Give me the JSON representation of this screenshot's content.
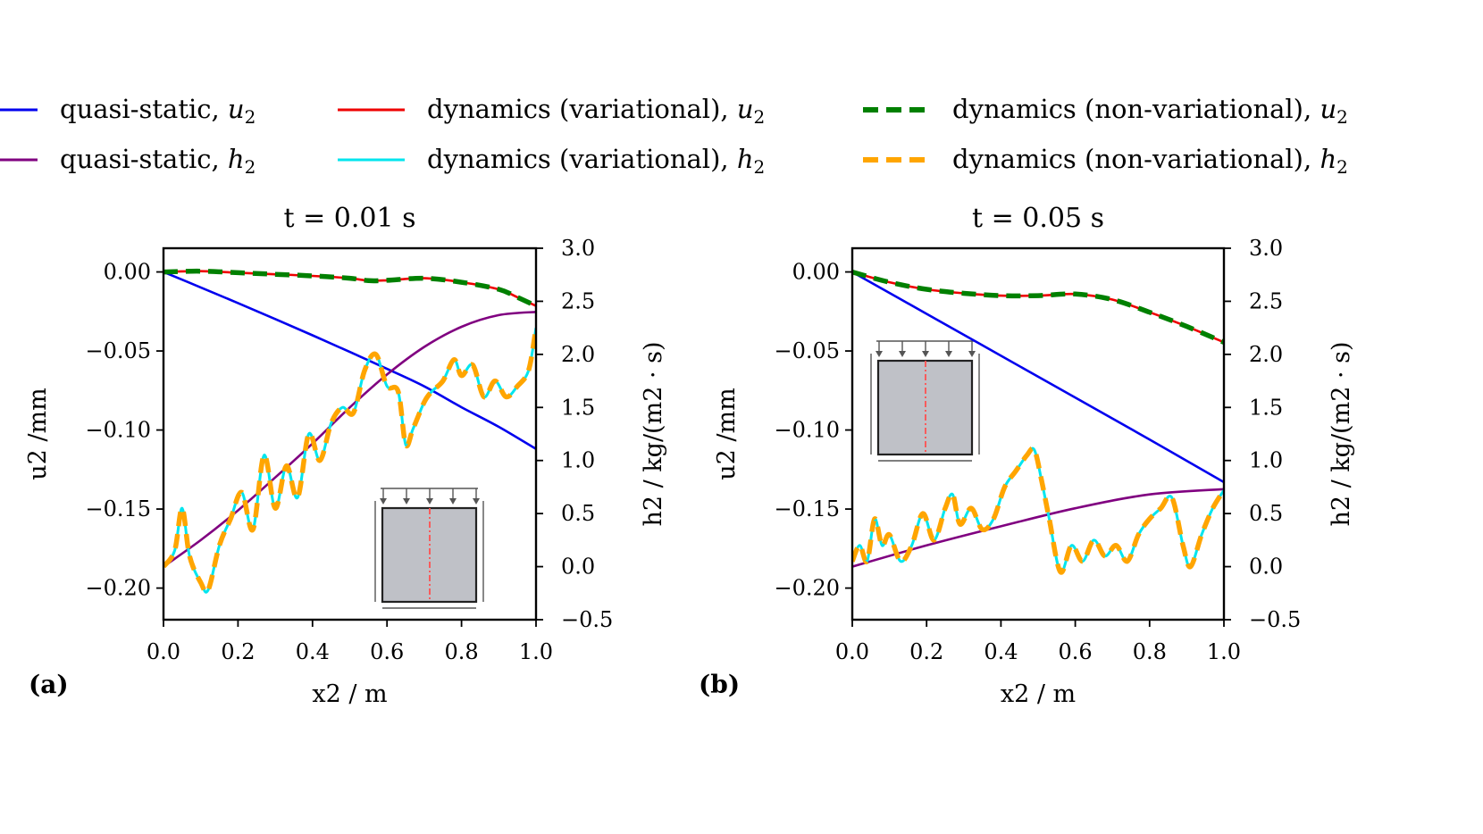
{
  "legend": [
    {
      "label": "quasi-static, ",
      "sym": "u",
      "sub": "2",
      "color": "#0000ee",
      "style": "solid",
      "key": "qs_u"
    },
    {
      "label": "quasi-static, ",
      "sym": "h",
      "sub": "2",
      "color": "#800080",
      "style": "solid",
      "key": "qs_h"
    },
    {
      "label": "dynamics (variational), ",
      "sym": "u",
      "sub": "2",
      "color": "#ee0000",
      "style": "solid",
      "key": "dv_u"
    },
    {
      "label": "dynamics (variational), ",
      "sym": "h",
      "sub": "2",
      "color": "#00e5ee",
      "style": "solid",
      "key": "dv_h"
    },
    {
      "label": "dynamics (non-variational), ",
      "sym": "u",
      "sub": "2",
      "color": "#008000",
      "style": "dashed",
      "key": "dn_u"
    },
    {
      "label": "dynamics (non-variational), ",
      "sym": "h",
      "sub": "2",
      "color": "#ffa500",
      "style": "dashed",
      "key": "dn_h"
    }
  ],
  "chart_data": [
    {
      "type": "line",
      "panel_label": "(a)",
      "title": "t = 0.01  s",
      "xlabel": "x2 / m",
      "ylabel_left": "u2 /mm",
      "ylabel_right": "h2 / kg/(m2 · s)",
      "xlim": [
        0,
        1
      ],
      "ylim_left": [
        -0.22,
        0.015
      ],
      "ylim_right": [
        -0.5,
        3.0
      ],
      "xticks": [
        "0.0",
        "0.2",
        "0.4",
        "0.6",
        "0.8",
        "1.0"
      ],
      "yticks_left": [
        "0.00",
        "−0.05",
        "−0.10",
        "−0.15",
        "−0.20"
      ],
      "yticks_right": [
        "3.0",
        "2.5",
        "2.0",
        "1.5",
        "1.0",
        "0.5",
        "0.0",
        "−0.5"
      ],
      "series": [
        {
          "key": "qs_u",
          "axis": "left",
          "x": [
            0,
            0.1,
            0.2,
            0.3,
            0.4,
            0.5,
            0.6,
            0.7,
            0.8,
            0.9,
            1.0
          ],
          "y": [
            0,
            -0.0098,
            -0.0197,
            -0.0298,
            -0.0401,
            -0.0506,
            -0.0613,
            -0.0724,
            -0.0856,
            -0.098,
            -0.112
          ]
        },
        {
          "key": "dv_u",
          "axis": "left",
          "x": [
            0,
            0.1,
            0.2,
            0.3,
            0.4,
            0.5,
            0.55,
            0.6,
            0.7,
            0.8,
            0.9,
            0.95,
            1.0
          ],
          "y": [
            0,
            0.0005,
            -0.0005,
            -0.0015,
            -0.0025,
            -0.004,
            -0.0055,
            -0.0053,
            -0.004,
            -0.0065,
            -0.011,
            -0.016,
            -0.0215
          ]
        },
        {
          "key": "dn_u",
          "axis": "left",
          "x": [
            0,
            0.1,
            0.2,
            0.3,
            0.4,
            0.5,
            0.55,
            0.6,
            0.7,
            0.8,
            0.9,
            0.95,
            1.0
          ],
          "y": [
            0,
            0.0005,
            -0.0005,
            -0.0015,
            -0.0025,
            -0.004,
            -0.0055,
            -0.0053,
            -0.004,
            -0.0065,
            -0.011,
            -0.016,
            -0.0215
          ]
        },
        {
          "key": "qs_h",
          "axis": "right",
          "x": [
            0,
            0.1,
            0.2,
            0.3,
            0.4,
            0.5,
            0.6,
            0.7,
            0.8,
            0.9,
            1.0
          ],
          "y": [
            0.0,
            0.25,
            0.53,
            0.84,
            1.16,
            1.5,
            1.81,
            2.07,
            2.26,
            2.37,
            2.4
          ]
        },
        {
          "key": "dv_h",
          "axis": "right",
          "x": [
            0,
            0.03,
            0.05,
            0.07,
            0.1,
            0.12,
            0.15,
            0.18,
            0.21,
            0.24,
            0.27,
            0.3,
            0.33,
            0.36,
            0.39,
            0.42,
            0.45,
            0.48,
            0.51,
            0.54,
            0.57,
            0.6,
            0.63,
            0.65,
            0.67,
            0.7,
            0.72,
            0.75,
            0.78,
            0.8,
            0.83,
            0.86,
            0.89,
            0.92,
            0.95,
            0.98,
            1.0
          ],
          "y": [
            0.0,
            0.15,
            0.55,
            0.1,
            -0.15,
            -0.22,
            0.2,
            0.45,
            0.7,
            0.35,
            1.05,
            0.55,
            0.95,
            0.65,
            1.25,
            1.0,
            1.35,
            1.5,
            1.45,
            1.85,
            2.0,
            1.7,
            1.65,
            1.15,
            1.3,
            1.55,
            1.65,
            1.75,
            1.95,
            1.8,
            1.9,
            1.6,
            1.75,
            1.6,
            1.7,
            1.85,
            2.25
          ]
        },
        {
          "key": "dn_h",
          "axis": "right",
          "x": [
            0,
            0.03,
            0.05,
            0.07,
            0.1,
            0.12,
            0.15,
            0.18,
            0.21,
            0.24,
            0.27,
            0.3,
            0.33,
            0.36,
            0.39,
            0.42,
            0.45,
            0.48,
            0.51,
            0.54,
            0.57,
            0.6,
            0.63,
            0.65,
            0.67,
            0.7,
            0.72,
            0.75,
            0.78,
            0.8,
            0.83,
            0.86,
            0.89,
            0.92,
            0.95,
            0.98,
            1.0
          ],
          "y": [
            0.0,
            0.15,
            0.55,
            0.1,
            -0.15,
            -0.22,
            0.2,
            0.45,
            0.7,
            0.35,
            1.05,
            0.55,
            0.95,
            0.65,
            1.25,
            1.0,
            1.35,
            1.5,
            1.45,
            1.85,
            2.0,
            1.7,
            1.65,
            1.15,
            1.3,
            1.55,
            1.65,
            1.75,
            1.95,
            1.8,
            1.9,
            1.6,
            1.75,
            1.6,
            1.7,
            1.85,
            2.25
          ]
        }
      ],
      "inset": "bottom-right"
    },
    {
      "type": "line",
      "panel_label": "(b)",
      "title": "t = 0.05  s",
      "xlabel": "x2 / m",
      "ylabel_left": "u2 /mm",
      "ylabel_right": "h2 / kg/(m2 · s)",
      "xlim": [
        0,
        1
      ],
      "ylim_left": [
        -0.22,
        0.015
      ],
      "ylim_right": [
        -0.5,
        3.0
      ],
      "xticks": [
        "0.0",
        "0.2",
        "0.4",
        "0.6",
        "0.8",
        "1.0"
      ],
      "yticks_left": [
        "0.00",
        "−0.05",
        "−0.10",
        "−0.15",
        "−0.20"
      ],
      "yticks_right": [
        "3.0",
        "2.5",
        "2.0",
        "1.5",
        "1.0",
        "0.5",
        "0.0",
        "−0.5"
      ],
      "series": [
        {
          "key": "qs_u",
          "axis": "left",
          "x": [
            0,
            0.2,
            0.4,
            0.6,
            0.8,
            1.0
          ],
          "y": [
            0,
            -0.0265,
            -0.053,
            -0.0795,
            -0.106,
            -0.133
          ]
        },
        {
          "key": "dv_u",
          "axis": "left",
          "x": [
            0,
            0.1,
            0.2,
            0.3,
            0.4,
            0.5,
            0.6,
            0.7,
            0.8,
            0.9,
            1.0
          ],
          "y": [
            0,
            -0.0065,
            -0.011,
            -0.0135,
            -0.015,
            -0.015,
            -0.014,
            -0.0175,
            -0.0255,
            -0.0345,
            -0.0445
          ]
        },
        {
          "key": "dn_u",
          "axis": "left",
          "x": [
            0,
            0.1,
            0.2,
            0.3,
            0.4,
            0.5,
            0.6,
            0.7,
            0.8,
            0.9,
            1.0
          ],
          "y": [
            0,
            -0.0065,
            -0.011,
            -0.0135,
            -0.015,
            -0.015,
            -0.014,
            -0.0175,
            -0.0255,
            -0.0345,
            -0.0445
          ]
        },
        {
          "key": "qs_h",
          "axis": "right",
          "x": [
            0,
            0.2,
            0.4,
            0.6,
            0.8,
            1.0
          ],
          "y": [
            0.0,
            0.2,
            0.38,
            0.55,
            0.68,
            0.73
          ]
        },
        {
          "key": "dv_h",
          "axis": "right",
          "x": [
            0,
            0.02,
            0.04,
            0.06,
            0.08,
            0.1,
            0.13,
            0.16,
            0.19,
            0.22,
            0.25,
            0.27,
            0.29,
            0.32,
            0.35,
            0.38,
            0.41,
            0.44,
            0.47,
            0.49,
            0.51,
            0.53,
            0.56,
            0.59,
            0.62,
            0.65,
            0.68,
            0.71,
            0.74,
            0.77,
            0.8,
            0.83,
            0.86,
            0.89,
            0.91,
            0.94,
            0.97,
            1.0
          ],
          "y": [
            0.05,
            0.2,
            0.05,
            0.45,
            0.2,
            0.3,
            0.05,
            0.2,
            0.5,
            0.25,
            0.55,
            0.68,
            0.4,
            0.55,
            0.35,
            0.45,
            0.75,
            0.9,
            1.05,
            1.1,
            0.8,
            0.45,
            -0.05,
            0.2,
            0.05,
            0.25,
            0.1,
            0.2,
            0.05,
            0.3,
            0.45,
            0.55,
            0.65,
            0.2,
            -0.0,
            0.3,
            0.55,
            0.72
          ]
        },
        {
          "key": "dn_h",
          "axis": "right",
          "x": [
            0,
            0.02,
            0.04,
            0.06,
            0.08,
            0.1,
            0.13,
            0.16,
            0.19,
            0.22,
            0.25,
            0.27,
            0.29,
            0.32,
            0.35,
            0.38,
            0.41,
            0.44,
            0.47,
            0.49,
            0.51,
            0.53,
            0.56,
            0.59,
            0.62,
            0.65,
            0.68,
            0.71,
            0.74,
            0.77,
            0.8,
            0.83,
            0.86,
            0.89,
            0.91,
            0.94,
            0.97,
            1.0
          ],
          "y": [
            0.05,
            0.2,
            0.05,
            0.45,
            0.2,
            0.3,
            0.05,
            0.2,
            0.5,
            0.25,
            0.55,
            0.68,
            0.4,
            0.55,
            0.35,
            0.45,
            0.75,
            0.9,
            1.05,
            1.1,
            0.8,
            0.45,
            -0.05,
            0.2,
            0.05,
            0.25,
            0.1,
            0.2,
            0.05,
            0.3,
            0.45,
            0.55,
            0.65,
            0.2,
            -0.0,
            0.3,
            0.55,
            0.72
          ]
        }
      ],
      "inset": "top-left"
    }
  ]
}
